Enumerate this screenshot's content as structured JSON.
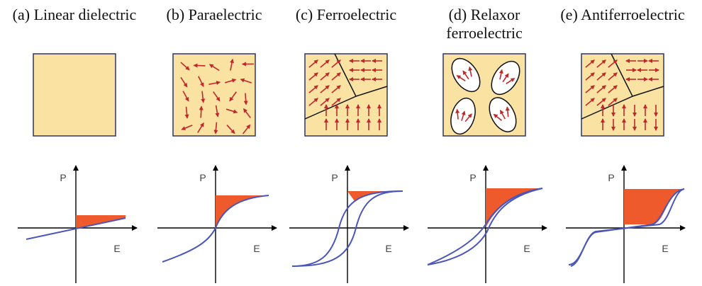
{
  "panels": [
    {
      "title": [
        "(a) Linear dielectric"
      ],
      "y_label": "P",
      "x_label": "E"
    },
    {
      "title": [
        "(b) Paraelectric"
      ],
      "y_label": "P",
      "x_label": "E"
    },
    {
      "title": [
        "(c) Ferroelectric"
      ],
      "y_label": "P",
      "x_label": "E"
    },
    {
      "title": [
        "(d) Relaxor",
        "ferroelectric"
      ],
      "y_label": "P",
      "x_label": "E"
    },
    {
      "title": [
        "(e) Antiferroelectric"
      ],
      "y_label": "P",
      "x_label": "E"
    }
  ]
}
